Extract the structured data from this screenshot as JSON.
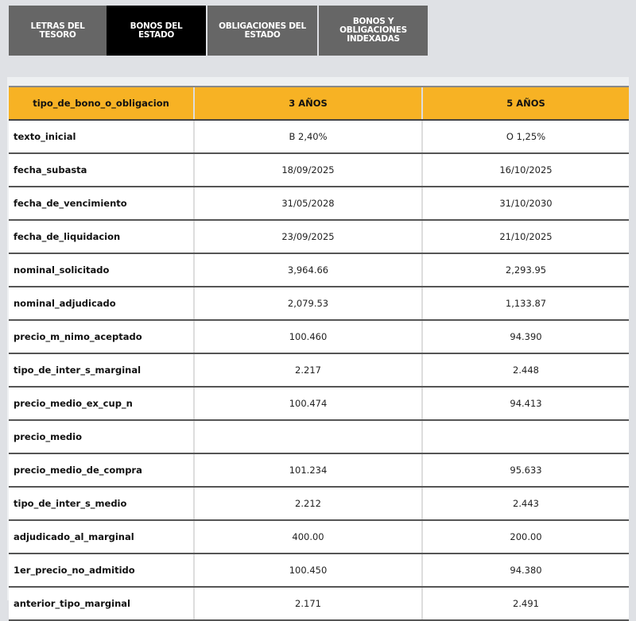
{
  "tabs": [
    {
      "label": "LETRAS DEL TESORO",
      "active": false
    },
    {
      "label": "BONOS DEL ESTADO",
      "active": true
    },
    {
      "label": "OBLIGACIONES DEL ESTADO",
      "active": false
    },
    {
      "label": "BONOS Y OBLIGACIONES INDEXADAS",
      "active": false
    }
  ],
  "table": {
    "headers": [
      "tipo_de_bono_o_obligacion",
      "3 AÑOS",
      "5 AÑOS"
    ],
    "rows": [
      [
        "texto_inicial",
        "B 2,40%",
        "O 1,25%"
      ],
      [
        "fecha_subasta",
        "18/09/2025",
        "16/10/2025"
      ],
      [
        "fecha_de_vencimiento",
        "31/05/2028",
        "31/10/2030"
      ],
      [
        "fecha_de_liquidacion",
        "23/09/2025",
        "21/10/2025"
      ],
      [
        "nominal_solicitado",
        "3,964.66",
        "2,293.95"
      ],
      [
        "nominal_adjudicado",
        "2,079.53",
        "1,133.87"
      ],
      [
        "precio_m_nimo_aceptado",
        "100.460",
        "94.390"
      ],
      [
        "tipo_de_inter_s_marginal",
        "2.217",
        "2.448"
      ],
      [
        "precio_medio_ex_cup_n",
        "100.474",
        "94.413"
      ],
      [
        "precio_medio",
        "",
        ""
      ],
      [
        "precio_medio_de_compra",
        "101.234",
        "95.633"
      ],
      [
        "tipo_de_inter_s_medio",
        "2.212",
        "2.443"
      ],
      [
        "adjudicado_al_marginal",
        "400.00",
        "200.00"
      ],
      [
        "1er_precio_no_admitido",
        "100.450",
        "94.380"
      ],
      [
        "anterior_tipo_marginal",
        "2.171",
        "2.491"
      ]
    ]
  },
  "colors": {
    "header": "#f7b224",
    "active_tab": "#000000",
    "tab": "#666666"
  }
}
